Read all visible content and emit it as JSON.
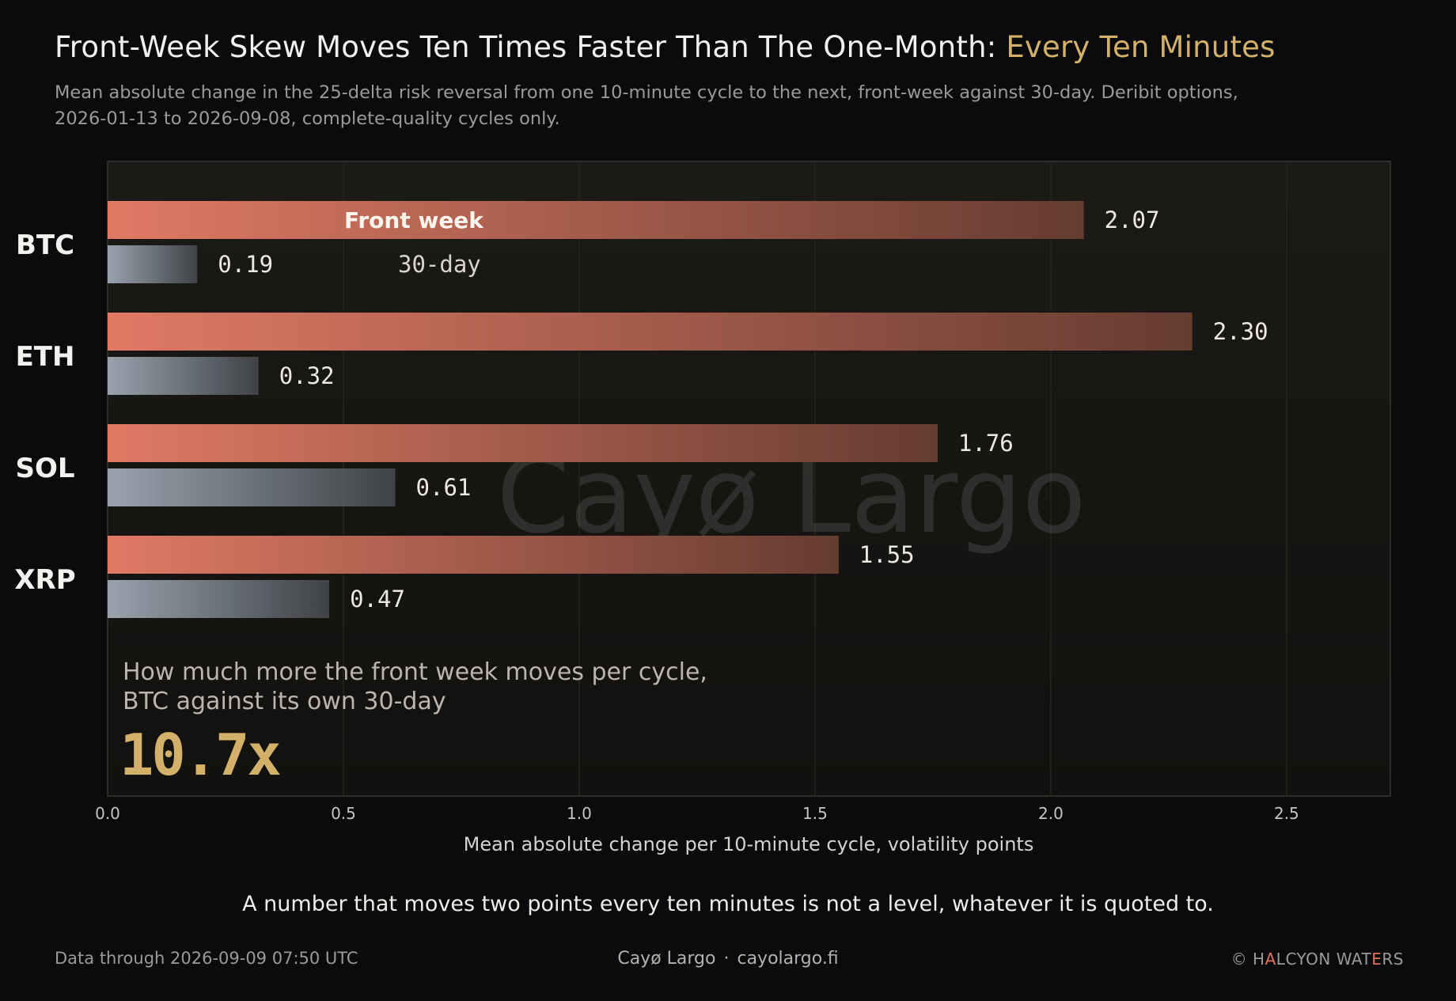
{
  "header": {
    "title": "Front-Week Skew Moves Ten Times Faster Than The One-Month: ",
    "title_accent": "Every Ten Minutes",
    "subtitle": "Mean absolute change in the 25-delta risk reversal from one 10-minute cycle to the next, front-week against 30-day. Deribit options, 2026-01-13 to 2026-09-08, complete-quality cycles only."
  },
  "chart_data": {
    "type": "bar",
    "orientation": "horizontal",
    "categories": [
      "BTC",
      "ETH",
      "SOL",
      "XRP"
    ],
    "series": [
      {
        "name": "Front week",
        "values": [
          2.07,
          2.3,
          1.76,
          1.55
        ]
      },
      {
        "name": "30-day",
        "values": [
          0.19,
          0.32,
          0.61,
          0.47
        ]
      }
    ],
    "xlabel": "Mean absolute change per 10-minute cycle, volatility points",
    "xlim": [
      0,
      2.72
    ],
    "xticks": [
      "0.0",
      "0.5",
      "1.0",
      "1.5",
      "2.0",
      "2.5"
    ],
    "value_labels": [
      [
        "2.07",
        "2.30",
        "1.76",
        "1.55"
      ],
      [
        "0.19",
        "0.32",
        "0.61",
        "0.47"
      ]
    ],
    "grid": true,
    "legend": "inline labels on BTC bars",
    "colors": {
      "front_week": "#e07a65",
      "thirty_day": "#98a3ae"
    }
  },
  "callout": {
    "line1": "How much more the front week moves per cycle,",
    "line2": "BTC against its own 30-day",
    "value": "10.7x"
  },
  "watermark": "Cayø Largo",
  "takeaway": "A number that moves two points every ten minutes is not a level, whatever it is quoted to.",
  "footer": {
    "left": "Data through 2026-09-09 07:50 UTC",
    "brand": "Cayø Largo",
    "separator": "·",
    "site": "cayolargo.fi",
    "copyright_prefix": "© H",
    "copyright_a": "A",
    "copyright_rest": "LCYON WAT",
    "copyright_e": "E",
    "copyright_end": "RS"
  }
}
